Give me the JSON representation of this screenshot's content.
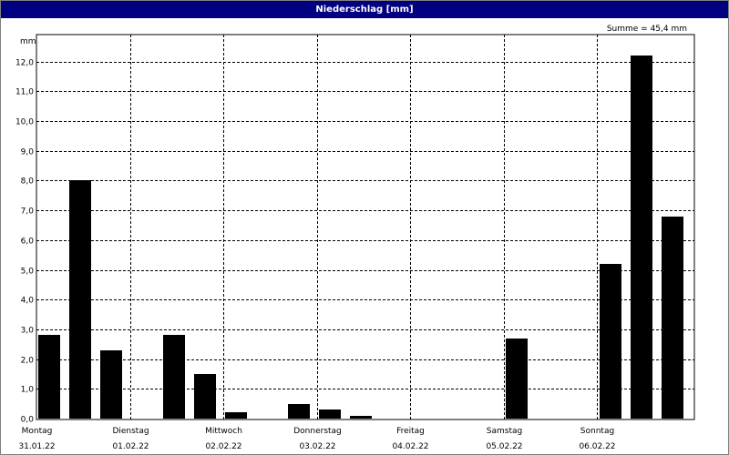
{
  "window": {
    "title": "Niederschlag [mm]"
  },
  "chart_data": {
    "type": "bar",
    "title": "Niederschlag [mm]",
    "ylabel": "mm",
    "xlabel": "",
    "ylim": [
      0,
      13
    ],
    "y_ticks": [
      {
        "value": 0,
        "label": "0,0"
      },
      {
        "value": 1,
        "label": "1,0"
      },
      {
        "value": 2,
        "label": "2,0"
      },
      {
        "value": 3,
        "label": "3,0"
      },
      {
        "value": 4,
        "label": "4,0"
      },
      {
        "value": 5,
        "label": "5,0"
      },
      {
        "value": 6,
        "label": "6,0"
      },
      {
        "value": 7,
        "label": "7,0"
      },
      {
        "value": 8,
        "label": "8,0"
      },
      {
        "value": 9,
        "label": "9,0"
      },
      {
        "value": 10,
        "label": "10,0"
      },
      {
        "value": 11,
        "label": "11,0"
      },
      {
        "value": 12,
        "label": "12,0"
      }
    ],
    "grid": true,
    "summary_label": "Summe = 45,4 mm",
    "days": [
      {
        "weekday": "Montag",
        "date": "31.01.22"
      },
      {
        "weekday": "Dienstag",
        "date": "01.02.22"
      },
      {
        "weekday": "Mittwoch",
        "date": "02.02.22"
      },
      {
        "weekday": "Donnerstag",
        "date": "03.02.22"
      },
      {
        "weekday": "Freitag",
        "date": "04.02.22"
      },
      {
        "weekday": "Samstag",
        "date": "05.02.22"
      },
      {
        "weekday": "Sonntag",
        "date": "06.02.22"
      }
    ],
    "bars_per_day": 3,
    "bar_color": "#000000",
    "values": [
      2.8,
      8.0,
      2.3,
      0,
      2.8,
      1.5,
      0.2,
      0,
      0.5,
      0.3,
      0.1,
      0,
      0,
      0,
      0,
      2.7,
      0,
      0,
      5.2,
      12.2,
      6.8
    ]
  }
}
